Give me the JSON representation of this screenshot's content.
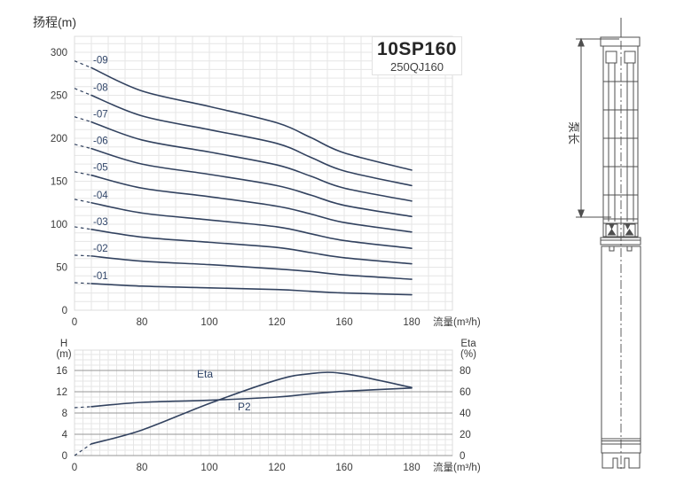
{
  "product": {
    "model": "10SP160",
    "alt_model": "250QJ160"
  },
  "chart_data": [
    {
      "id": "head-curves",
      "type": "line",
      "title": "10SP160",
      "subtitle": "250QJ160",
      "ylabel": "扬程(m)",
      "xlabel": "流量(m³/h)",
      "x_axis_note": "labeled ticks equally spaced (non-linear flow axis)",
      "x_tick_labels": [
        0,
        80,
        100,
        120,
        160,
        180
      ],
      "y_ticks": [
        0,
        50,
        100,
        150,
        200,
        250,
        300
      ],
      "ylim": [
        0,
        325
      ],
      "grid": "minor-light",
      "x": [
        20,
        80,
        100,
        120,
        140,
        160,
        180
      ],
      "series": [
        {
          "name": "-01",
          "shutoff": 32,
          "values": [
            31,
            28,
            26,
            24,
            22,
            20,
            18
          ]
        },
        {
          "name": "-02",
          "shutoff": 64,
          "values": [
            63,
            57,
            53,
            48,
            45,
            41,
            36
          ]
        },
        {
          "name": "-03",
          "shutoff": 97,
          "values": [
            94,
            85,
            79,
            73,
            67,
            61,
            54
          ]
        },
        {
          "name": "-04",
          "shutoff": 129,
          "values": [
            125,
            113,
            105,
            97,
            89,
            81,
            72
          ]
        },
        {
          "name": "-05",
          "shutoff": 161,
          "values": [
            157,
            142,
            132,
            121,
            112,
            102,
            91
          ]
        },
        {
          "name": "-06",
          "shutoff": 193,
          "values": [
            188,
            170,
            158,
            145,
            134,
            122,
            109
          ]
        },
        {
          "name": "-07",
          "shutoff": 225,
          "values": [
            219,
            198,
            184,
            169,
            156,
            142,
            127
          ]
        },
        {
          "name": "-08",
          "shutoff": 258,
          "values": [
            250,
            226,
            210,
            194,
            178,
            162,
            145
          ]
        },
        {
          "name": "-09",
          "shutoff": 290,
          "values": [
            282,
            255,
            237,
            218,
            201,
            183,
            163
          ]
        }
      ]
    },
    {
      "id": "efficiency-power",
      "type": "line",
      "xlabel": "流量(m³/h)",
      "x_tick_labels": [
        0,
        80,
        100,
        120,
        160,
        180
      ],
      "left_axis": {
        "title_lines": [
          "H",
          "(m)"
        ],
        "ticks": [
          0,
          4,
          8,
          12,
          16
        ],
        "max": 20
      },
      "right_axis": {
        "title_lines": [
          "Eta",
          "(%)"
        ],
        "ticks": [
          0,
          20,
          40,
          60,
          80
        ],
        "max": 100
      },
      "grid": "minor-light-with-dark-majors",
      "x": [
        20,
        80,
        100,
        120,
        140,
        160,
        180
      ],
      "series": [
        {
          "name": "Eta",
          "axis": "right",
          "dash_from": 0,
          "values": [
            11,
            24,
            49,
            71,
            77,
            77,
            64
          ]
        },
        {
          "name": "P2",
          "axis": "left",
          "dash_from": 9,
          "values": [
            9.2,
            10,
            10.4,
            11,
            11.6,
            12.1,
            12.7
          ]
        }
      ]
    }
  ],
  "drawing": {
    "dimension_label": "泵长"
  },
  "colors": {
    "curve": "#32425f",
    "curve_label": "#2f4468",
    "grid_minor": "#e6e6e6",
    "grid_border": "#dcdcdc",
    "grid_major": "#969696",
    "tick_text": "#3a3a3a",
    "drawing_stroke": "#4f4f4f"
  }
}
